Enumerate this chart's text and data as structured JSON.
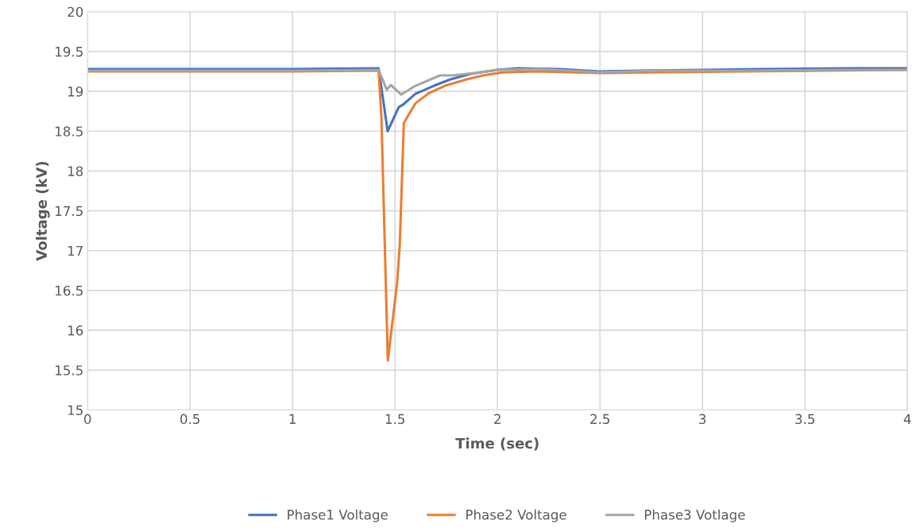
{
  "chart_data": {
    "type": "line",
    "xlabel": "Time (sec)",
    "ylabel": "Voltage (kV)",
    "xlim": [
      0,
      4
    ],
    "ylim": [
      15,
      20
    ],
    "xticks": [
      0,
      0.5,
      1,
      1.5,
      2,
      2.5,
      3,
      3.5,
      4
    ],
    "yticks": [
      15,
      15.5,
      16,
      16.5,
      17,
      17.5,
      18,
      18.5,
      19,
      19.5,
      20
    ],
    "grid": true,
    "legend": "bottom",
    "marker": "none",
    "line_style": "solid",
    "series": [
      {
        "name": "Phase1 Voltage",
        "color": "#4472c4",
        "x": [
          0,
          0.5,
          1,
          1.42,
          1.464,
          1.518,
          1.543,
          1.6,
          1.69,
          1.77,
          1.87,
          2.0,
          2.1,
          2.3,
          2.5,
          2.7,
          3.0,
          3.3,
          3.7,
          4.0
        ],
        "values": [
          19.28,
          19.28,
          19.28,
          19.29,
          18.5,
          18.8,
          18.84,
          18.97,
          19.07,
          19.15,
          19.22,
          19.27,
          19.29,
          19.28,
          19.25,
          19.26,
          19.27,
          19.28,
          19.29,
          19.29
        ]
      },
      {
        "name": "Phase2 Voltage",
        "color": "#ed7d31",
        "x": [
          0,
          0.5,
          1,
          1.42,
          1.434,
          1.465,
          1.51,
          1.523,
          1.543,
          1.558,
          1.6,
          1.667,
          1.744,
          1.85,
          1.93,
          2.03,
          2.2,
          2.5,
          2.8,
          3.2,
          3.6,
          4.0
        ],
        "values": [
          19.25,
          19.25,
          19.25,
          19.26,
          18.65,
          15.62,
          16.59,
          17.06,
          18.6,
          18.67,
          18.85,
          18.98,
          19.07,
          19.15,
          19.2,
          19.24,
          19.25,
          19.23,
          19.24,
          19.25,
          19.26,
          19.27
        ]
      },
      {
        "name": "Phase3 Votlage",
        "color": "#a5a5a5",
        "x": [
          0,
          0.5,
          1,
          1.42,
          1.46,
          1.48,
          1.53,
          1.6,
          1.72,
          1.78,
          1.89,
          2.0,
          2.2,
          2.5,
          2.8,
          3.2,
          3.6,
          4.0
        ],
        "values": [
          19.26,
          19.26,
          19.26,
          19.27,
          19.02,
          19.08,
          18.96,
          19.07,
          19.2,
          19.2,
          19.23,
          19.27,
          19.28,
          19.24,
          19.26,
          19.26,
          19.27,
          19.27
        ]
      }
    ]
  }
}
